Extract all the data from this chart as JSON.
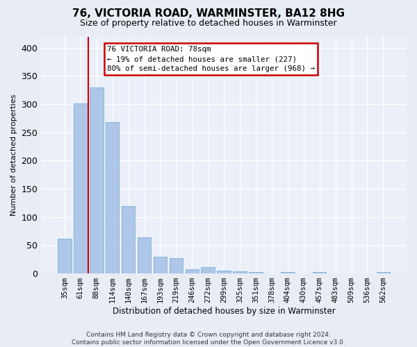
{
  "title1": "76, VICTORIA ROAD, WARMINSTER, BA12 8HG",
  "title2": "Size of property relative to detached houses in Warminster",
  "xlabel": "Distribution of detached houses by size in Warminster",
  "ylabel": "Number of detached properties",
  "categories": [
    "35sqm",
    "61sqm",
    "88sqm",
    "114sqm",
    "140sqm",
    "167sqm",
    "193sqm",
    "219sqm",
    "246sqm",
    "272sqm",
    "299sqm",
    "325sqm",
    "351sqm",
    "378sqm",
    "404sqm",
    "430sqm",
    "457sqm",
    "483sqm",
    "509sqm",
    "536sqm",
    "562sqm"
  ],
  "values": [
    62,
    301,
    330,
    268,
    119,
    64,
    30,
    27,
    8,
    11,
    5,
    4,
    2,
    0,
    3,
    0,
    3,
    0,
    0,
    0,
    3
  ],
  "bar_color": "#aec6e8",
  "bar_edge_color": "#7aadd4",
  "vline_color": "#cc0000",
  "vline_x": 1.5,
  "annotation_text": "76 VICTORIA ROAD: 78sqm\n← 19% of detached houses are smaller (227)\n80% of semi-detached houses are larger (968) →",
  "annotation_box_color": "#ffffff",
  "annotation_box_edge": "#cc0000",
  "bg_color": "#e8edf5",
  "plot_bg_color": "#eaeff8",
  "footnote": "Contains HM Land Registry data © Crown copyright and database right 2024.\nContains public sector information licensed under the Open Government Licence v3.0.",
  "ylim": [
    0,
    420
  ],
  "yticks": [
    0,
    50,
    100,
    150,
    200,
    250,
    300,
    350,
    400
  ],
  "title1_fontsize": 11,
  "title2_fontsize": 9,
  "ylabel_fontsize": 8,
  "xlabel_fontsize": 8.5,
  "tick_fontsize": 7.5,
  "footnote_fontsize": 6.5
}
